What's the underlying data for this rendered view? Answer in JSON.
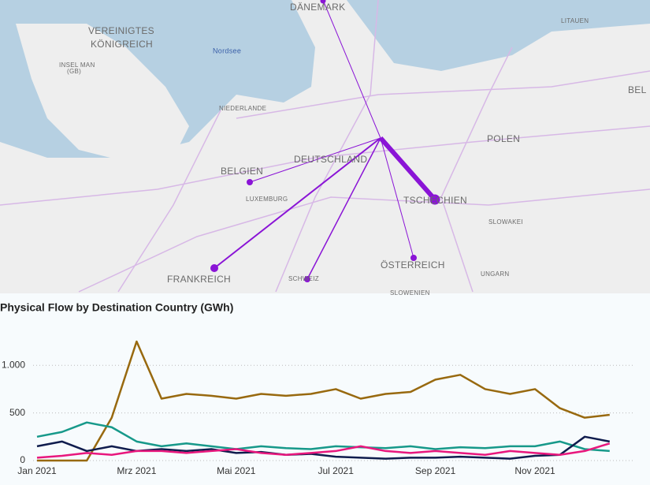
{
  "map": {
    "labels": [
      "DÄNEMARK",
      "VEREINIGTES",
      "KÖNIGREICH",
      "Nordsee",
      "INSEL MAN",
      "(GB)",
      "NIEDERLANDE",
      "BELGIEN",
      "LUXEMBURG",
      "DEUTSCHLAND",
      "TSCHECHIEN",
      "POLEN",
      "LITAUEN",
      "BEL",
      "SLOWAKEI",
      "ÖSTERREICH",
      "UNGARN",
      "FRANKREICH",
      "SCHWEIZ",
      "SLOWENIEN"
    ]
  },
  "chart_data": {
    "type": "line",
    "title": "Physical Flow by Destination Country (GWh)",
    "categories": [
      "Jan 2021",
      null,
      null,
      null,
      "Mrz 2021",
      null,
      null,
      null,
      "Mai 2021",
      null,
      null,
      null,
      "Jul 2021",
      null,
      null,
      null,
      "Sep 2021",
      null,
      null,
      null,
      "Nov 2021",
      null,
      null,
      null
    ],
    "series": [
      {
        "color": "#98690f",
        "values": [
          0,
          0,
          0,
          450,
          1250,
          650,
          700,
          680,
          650,
          700,
          680,
          700,
          750,
          650,
          700,
          720,
          850,
          900,
          750,
          700,
          750,
          550,
          450,
          480
        ]
      },
      {
        "color": "#17998a",
        "values": [
          250,
          300,
          400,
          350,
          200,
          150,
          180,
          150,
          120,
          150,
          130,
          120,
          150,
          140,
          130,
          150,
          120,
          140,
          130,
          150,
          150,
          200,
          120,
          100
        ]
      },
      {
        "color": "#0f1c4d",
        "values": [
          150,
          200,
          100,
          150,
          100,
          120,
          100,
          120,
          80,
          90,
          60,
          70,
          40,
          30,
          20,
          30,
          30,
          40,
          30,
          20,
          50,
          60,
          250,
          200
        ]
      },
      {
        "color": "#e8177d",
        "values": [
          30,
          50,
          80,
          60,
          100,
          100,
          80,
          100,
          120,
          80,
          60,
          80,
          100,
          150,
          100,
          80,
          100,
          80,
          60,
          100,
          80,
          60,
          100,
          180
        ]
      }
    ],
    "ylim": [
      0,
      1300
    ],
    "yticks": [
      0,
      500,
      {
        "value": 1000,
        "label": "1.000"
      }
    ],
    "grid": true
  }
}
